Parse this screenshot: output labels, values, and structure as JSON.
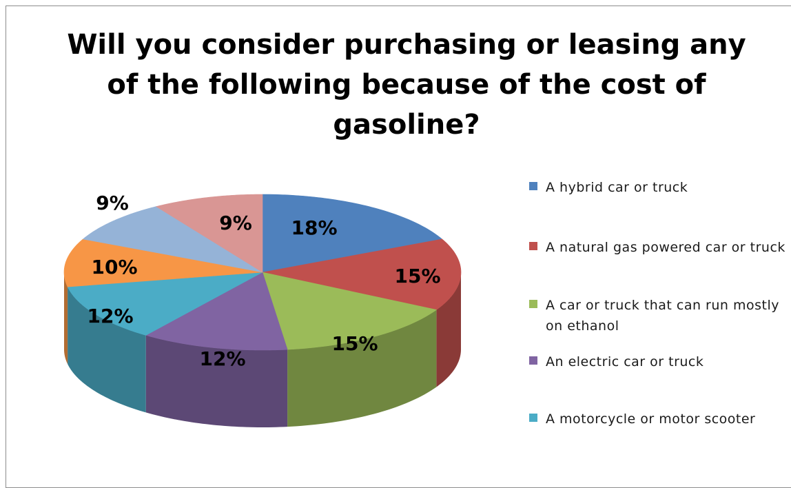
{
  "chart_data": {
    "type": "pie",
    "title": "Will you consider purchasing or leasing any of the following because of the cost of gasoline?",
    "slices": [
      {
        "label": "A hybrid car or truck",
        "value": 18,
        "color": "#4f81bd",
        "data_label": "18%"
      },
      {
        "label": "A natural gas powered car or truck",
        "value": 15,
        "color": "#c0504d",
        "data_label": "15%"
      },
      {
        "label": "A car or truck that can run mostly on ethanol",
        "value": 15,
        "color": "#9bbb59",
        "data_label": "15%"
      },
      {
        "label": "An electric car or truck",
        "value": 12,
        "color": "#8064a2",
        "data_label": "12%"
      },
      {
        "label": "A motorcycle or motor scooter",
        "value": 12,
        "color": "#4bacc6",
        "data_label": "12%"
      },
      {
        "label": "",
        "value": 10,
        "color": "#f79646",
        "data_label": "10%"
      },
      {
        "label": "",
        "value": 9,
        "color": "#95b3d7",
        "data_label": "9%"
      },
      {
        "label": "",
        "value": 9,
        "color": "#d99694",
        "data_label": "9%"
      }
    ],
    "style": "3d-pie",
    "legend_position": "right"
  }
}
